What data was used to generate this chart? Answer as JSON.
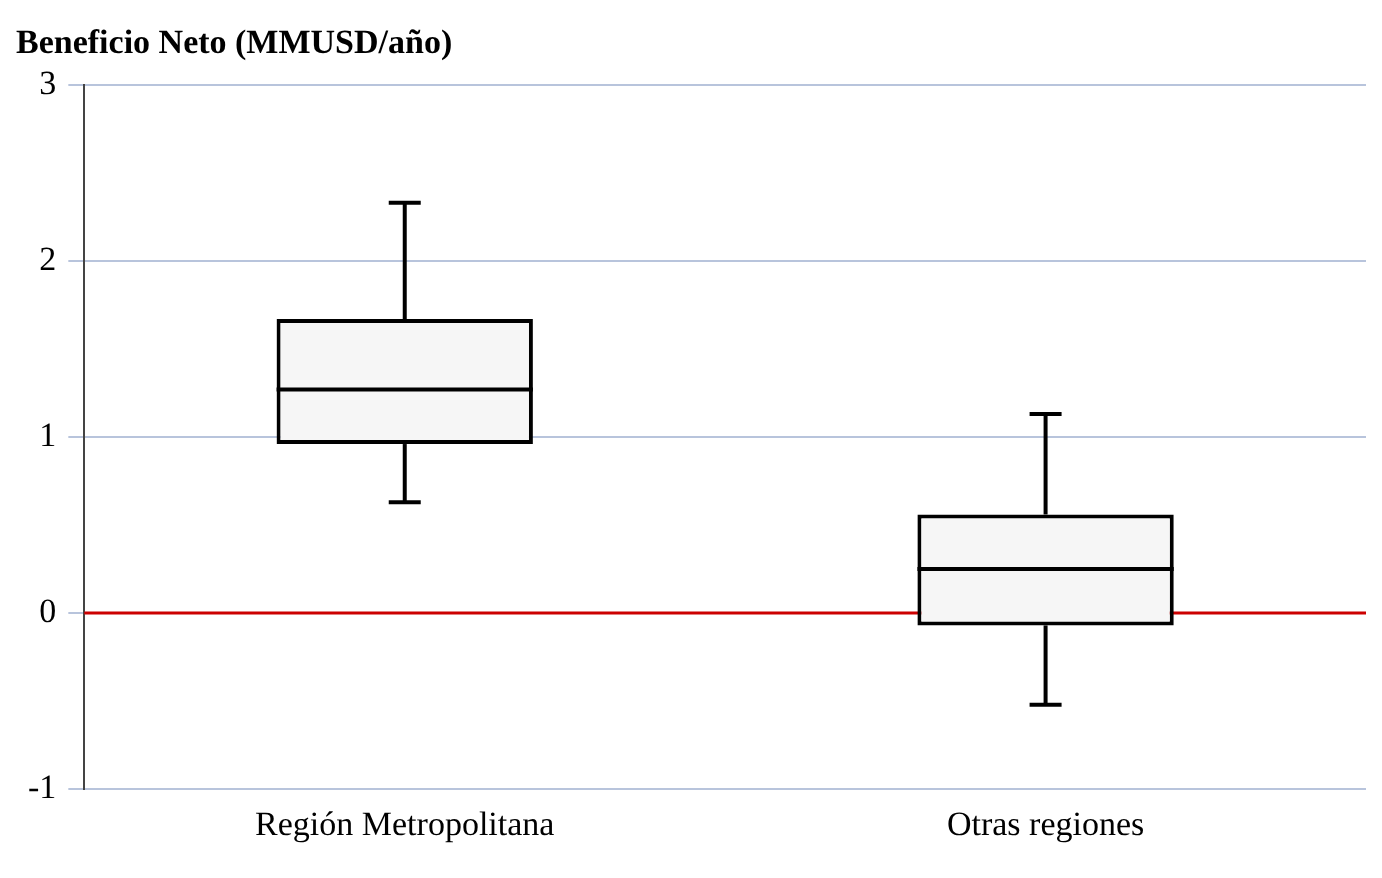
{
  "chart_data": {
    "type": "box",
    "ylabel": "Beneficio Neto (MMUSD/año)",
    "categories": [
      "Región Metropolitana",
      "Otras regiones"
    ],
    "boxes": [
      {
        "low": 0.63,
        "q1": 0.96,
        "median": 1.27,
        "q3": 1.67,
        "high": 2.33
      },
      {
        "low": -0.52,
        "q1": -0.07,
        "median": 0.25,
        "q3": 0.56,
        "high": 1.13
      }
    ],
    "color": "#000000",
    "ylim": [
      -1,
      3
    ],
    "yticks": [
      -1,
      0,
      1,
      2,
      3
    ],
    "grid": "y",
    "ref_lines": [
      {
        "axis": "y",
        "value": 0,
        "color": "#cc0000"
      }
    ],
    "legend": false
  }
}
